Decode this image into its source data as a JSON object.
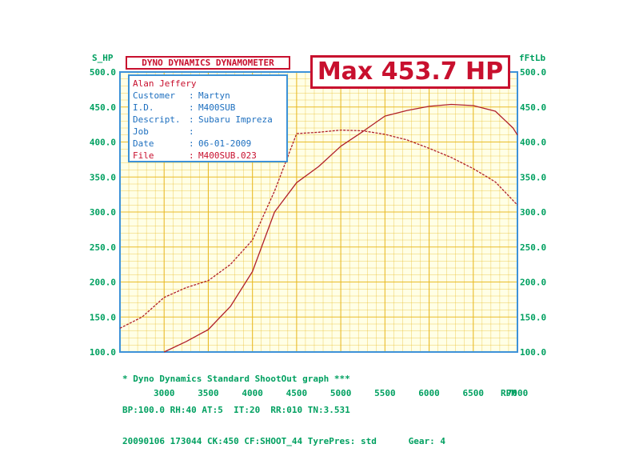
{
  "header": {
    "title": "DYNO DYNAMICS DYNAMOMETER",
    "max_label": "Max 453.7 HP"
  },
  "info": {
    "name": "Alan Jeffery",
    "rows": [
      {
        "key": "Customer",
        "value": "Martyn"
      },
      {
        "key": "I.D.",
        "value": "M400SUB"
      },
      {
        "key": "Descript.",
        "value": "Subaru Impreza"
      },
      {
        "key": "Job",
        "value": ""
      },
      {
        "key": "Date",
        "value": "06-01-2009"
      },
      {
        "key": "File",
        "value": "M400SUB.023"
      }
    ]
  },
  "footer": {
    "line1": "* Dyno Dynamics Standard ShootOut graph ***",
    "line2": "BP:100.0 RH:40 AT:5  IT:20  RR:010 TN:3.531",
    "line3": "20090106 173044 CK:450 CF:SHOOT_44 TyrePres: std      Gear: 4"
  },
  "chart_data": {
    "type": "line",
    "xlabel": "RPM",
    "ylabel_left": "S_HP",
    "ylabel_right": "fFtLb",
    "xlim": [
      2500,
      7000
    ],
    "ylim": [
      100,
      500
    ],
    "x_ticks": [
      3000,
      3500,
      4000,
      4500,
      5000,
      5500,
      6000,
      6500,
      7000
    ],
    "y_ticks": [
      "100.0",
      "150.0",
      "200.0",
      "250.0",
      "300.0",
      "350.0",
      "400.0",
      "450.0",
      "500.0"
    ],
    "grid": true,
    "series": [
      {
        "color": "#b0202a",
        "points": [
          [
            3000,
            100
          ],
          [
            3250,
            115
          ],
          [
            3500,
            132
          ],
          [
            3750,
            165
          ],
          [
            4000,
            215
          ],
          [
            4250,
            300
          ],
          [
            4500,
            342
          ],
          [
            4750,
            365
          ],
          [
            5000,
            394
          ],
          [
            5250,
            415
          ],
          [
            5500,
            437
          ],
          [
            5750,
            445
          ],
          [
            6000,
            451
          ],
          [
            6250,
            453.7
          ],
          [
            6500,
            452
          ],
          [
            6750,
            444
          ],
          [
            6950,
            420
          ],
          [
            7000,
            410
          ]
        ]
      },
      {
        "color": "#b0202a",
        "points": [
          [
            2500,
            134
          ],
          [
            2750,
            150
          ],
          [
            3000,
            178
          ],
          [
            3250,
            192
          ],
          [
            3500,
            202
          ],
          [
            3750,
            225
          ],
          [
            4000,
            260
          ],
          [
            4250,
            330
          ],
          [
            4500,
            412
          ],
          [
            4750,
            414
          ],
          [
            5000,
            417
          ],
          [
            5250,
            416
          ],
          [
            5500,
            411
          ],
          [
            5750,
            403
          ],
          [
            6000,
            391
          ],
          [
            6250,
            378
          ],
          [
            6500,
            362
          ],
          [
            6750,
            343
          ],
          [
            7000,
            310
          ]
        ]
      }
    ]
  },
  "colors": {
    "plot_bg": "#ffffe6",
    "grid": "#e8b820",
    "axis": "#1d6fbf",
    "frame": "#3d92d8",
    "label_green": "#00a060",
    "curve": "#b0202a"
  }
}
